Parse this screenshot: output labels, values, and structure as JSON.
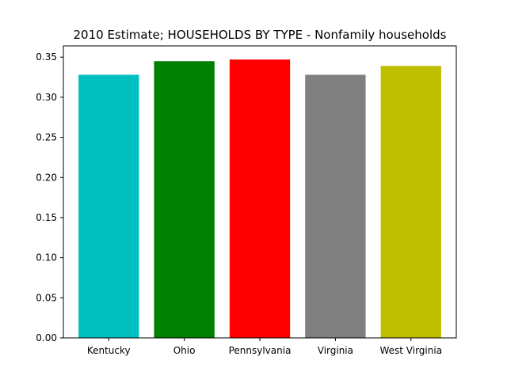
{
  "chart_data": {
    "type": "bar",
    "title": "2010 Estimate; HOUSEHOLDS BY TYPE - Nonfamily households",
    "xlabel": "",
    "ylabel": "",
    "categories": [
      "Kentucky",
      "Ohio",
      "Pennsylvania",
      "Virginia",
      "West Virginia"
    ],
    "values": [
      0.328,
      0.345,
      0.347,
      0.328,
      0.339
    ],
    "colors": [
      "#00bfbf",
      "#008000",
      "#ff0000",
      "#808080",
      "#bfbf00"
    ],
    "ylim": [
      0,
      0.364
    ],
    "yticks": [
      0.0,
      0.05,
      0.1,
      0.15,
      0.2,
      0.25,
      0.3,
      0.35
    ],
    "ytick_labels": [
      "0.00",
      "0.05",
      "0.10",
      "0.15",
      "0.20",
      "0.25",
      "0.30",
      "0.35"
    ],
    "grid": false,
    "legend": "none"
  }
}
